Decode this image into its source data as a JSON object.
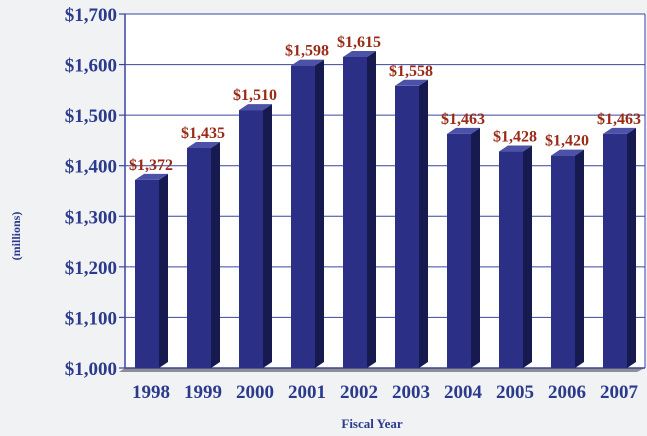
{
  "chart_data": {
    "type": "bar",
    "title": "",
    "xlabel": "Fiscal Year",
    "ylabel": "(millions)",
    "categories": [
      "1998",
      "1999",
      "2000",
      "2001",
      "2002",
      "2003",
      "2004",
      "2005",
      "2006",
      "2007"
    ],
    "values": [
      1372,
      1435,
      1510,
      1598,
      1615,
      1558,
      1463,
      1428,
      1420,
      1463
    ],
    "value_labels": [
      "$1,372",
      "$1,435",
      "$1,510",
      "$1,598",
      "$1,615",
      "$1,558",
      "$1,463",
      "$1,428",
      "$1,420",
      "$1,463"
    ],
    "ylim": [
      1000,
      1700
    ],
    "yticks": [
      1000,
      1100,
      1200,
      1300,
      1400,
      1500,
      1600,
      1700
    ],
    "ytick_labels": [
      "$1,000",
      "$1,100",
      "$1,200",
      "$1,300",
      "$1,400",
      "$1,500",
      "$1,600",
      "$1,700"
    ],
    "grid": true,
    "legend": "none",
    "colors": {
      "bar_front": "#2b2f85",
      "bar_side": "#161a4f",
      "bar_top": "#4c52a8",
      "label": "#9a2a16",
      "axis_text": "#2b3a8c",
      "grid": "#3a45a0",
      "floor": "#8f8f93",
      "plot_bg": "#ffffff"
    }
  }
}
